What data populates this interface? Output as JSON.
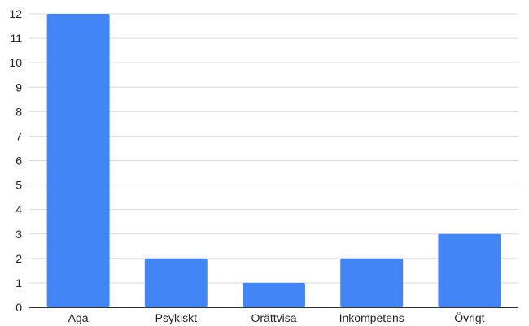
{
  "chart_data": {
    "type": "bar",
    "title": "",
    "xlabel": "",
    "ylabel": "",
    "categories": [
      "Aga",
      "Psykiskt",
      "Orättvisa",
      "Inkompetens",
      "Övrigt"
    ],
    "values": [
      12,
      2,
      1,
      2,
      3
    ],
    "ylim": [
      0,
      12
    ],
    "yticks": [
      0,
      1,
      2,
      3,
      4,
      5,
      6,
      7,
      8,
      9,
      10,
      11,
      12
    ],
    "grid": true,
    "legend": "none",
    "bar_color": "#4285F4",
    "grid_color": "#d9d9d9",
    "axis_color": "#333333"
  }
}
